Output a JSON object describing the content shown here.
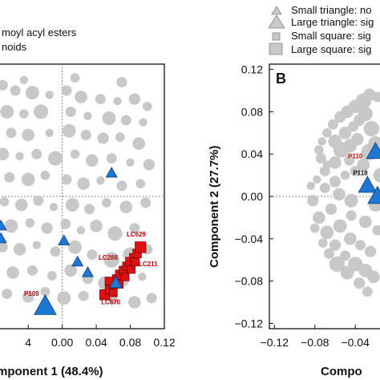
{
  "colors": {
    "background": "#ffffff",
    "points_gray": "#c8c8c8",
    "points_blue": "#1f77d4",
    "points_red": "#dd1111",
    "label_red": "#cc0000",
    "axis": "#111111",
    "zero_line": "#888888"
  },
  "legend_left": {
    "entries": [
      "moyl acyl esters",
      "noids"
    ]
  },
  "legend_right": {
    "entries": [
      "Small triangle: no",
      "Large triangle: sig",
      "Small square: sig",
      "Large square: sig"
    ]
  },
  "chart_data": [
    {
      "type": "scatter",
      "panel_label": "",
      "xlabel": "mponent 1 (48.4%)",
      "ylabel": "",
      "x_ticks": [
        "4",
        "0.00",
        "0.04",
        "0.08",
        "0.12"
      ],
      "x_tick_values": [
        -0.04,
        0.0,
        0.04,
        0.08,
        0.12
      ],
      "xlim": [
        -0.075,
        0.12
      ],
      "ylim": [
        -0.125,
        0.125
      ],
      "grid": false,
      "zero_lines": true,
      "series": [
        {
          "shape": "circle",
          "color": "gray",
          "points": [
            [
              -0.07,
              0.105,
              1.0
            ],
            [
              -0.055,
              0.1,
              1.0
            ],
            [
              -0.035,
              0.098,
              1.3
            ],
            [
              -0.015,
              0.096,
              0.8
            ],
            [
              0.005,
              0.1,
              1.0
            ],
            [
              0.022,
              0.094,
              1.2
            ],
            [
              0.045,
              0.092,
              1.0
            ],
            [
              0.065,
              0.09,
              0.8
            ],
            [
              0.085,
              0.092,
              1.1
            ],
            [
              0.1,
              0.085,
              0.9
            ],
            [
              -0.065,
              0.08,
              1.3
            ],
            [
              -0.045,
              0.078,
              0.9
            ],
            [
              -0.025,
              0.08,
              1.4
            ],
            [
              0.01,
              0.08,
              1.0
            ],
            [
              0.03,
              0.076,
              0.8
            ],
            [
              0.055,
              0.074,
              1.3
            ],
            [
              0.075,
              0.072,
              1.0
            ],
            [
              0.095,
              0.07,
              0.8
            ],
            [
              -0.06,
              0.06,
              1.0
            ],
            [
              -0.04,
              0.058,
              1.2
            ],
            [
              -0.015,
              0.06,
              0.8
            ],
            [
              0.008,
              0.062,
              1.3
            ],
            [
              0.028,
              0.058,
              1.0
            ],
            [
              0.048,
              0.055,
              1.1
            ],
            [
              0.068,
              0.056,
              0.9
            ],
            [
              0.09,
              0.05,
              1.2
            ],
            [
              -0.07,
              0.04,
              1.2
            ],
            [
              -0.05,
              0.038,
              0.8
            ],
            [
              -0.03,
              0.04,
              1.0
            ],
            [
              -0.008,
              0.036,
              1.4
            ],
            [
              0.015,
              0.04,
              0.9
            ],
            [
              0.035,
              0.034,
              1.2
            ],
            [
              0.058,
              0.036,
              1.0
            ],
            [
              0.08,
              0.032,
              0.8
            ],
            [
              0.102,
              0.03,
              1.1
            ],
            [
              -0.062,
              0.018,
              1.0
            ],
            [
              -0.04,
              0.016,
              1.3
            ],
            [
              -0.02,
              0.02,
              0.9
            ],
            [
              0.005,
              0.016,
              1.0
            ],
            [
              0.025,
              0.012,
              1.2
            ],
            [
              0.045,
              0.015,
              0.8
            ],
            [
              0.07,
              0.01,
              1.0
            ],
            [
              0.092,
              0.012,
              0.9
            ],
            [
              -0.068,
              -0.005,
              0.9
            ],
            [
              -0.048,
              -0.008,
              1.2
            ],
            [
              -0.028,
              -0.004,
              1.0
            ],
            [
              -0.01,
              -0.01,
              0.8
            ],
            [
              0.012,
              -0.008,
              1.3
            ],
            [
              0.032,
              -0.012,
              1.0
            ],
            [
              0.052,
              -0.006,
              0.9
            ],
            [
              0.075,
              -0.01,
              1.2
            ],
            [
              0.098,
              -0.006,
              1.0
            ],
            [
              -0.06,
              -0.028,
              1.3
            ],
            [
              -0.038,
              -0.025,
              0.9
            ],
            [
              -0.018,
              -0.03,
              1.1
            ],
            [
              0.004,
              -0.026,
              1.0
            ],
            [
              0.022,
              -0.032,
              0.8
            ],
            [
              0.04,
              -0.028,
              1.2
            ],
            [
              0.062,
              -0.035,
              1.4
            ],
            [
              0.085,
              -0.03,
              1.0
            ],
            [
              -0.07,
              -0.048,
              1.0
            ],
            [
              -0.05,
              -0.05,
              1.2
            ],
            [
              -0.03,
              -0.046,
              0.8
            ],
            [
              -0.008,
              -0.052,
              1.0
            ],
            [
              0.015,
              -0.048,
              1.3
            ],
            [
              0.035,
              -0.055,
              1.0
            ],
            [
              0.058,
              -0.06,
              1.5
            ],
            [
              0.08,
              -0.055,
              1.4
            ],
            [
              0.1,
              -0.05,
              1.0
            ],
            [
              -0.058,
              -0.072,
              1.2
            ],
            [
              -0.035,
              -0.07,
              1.0
            ],
            [
              -0.012,
              -0.075,
              0.9
            ],
            [
              0.01,
              -0.07,
              1.2
            ],
            [
              0.03,
              -0.078,
              1.0
            ],
            [
              0.05,
              -0.082,
              1.3
            ],
            [
              0.072,
              -0.08,
              1.0
            ],
            [
              0.094,
              -0.076,
              0.8
            ],
            [
              -0.065,
              -0.092,
              1.0
            ],
            [
              -0.04,
              -0.095,
              1.1
            ],
            [
              -0.02,
              -0.09,
              0.9
            ],
            [
              0.002,
              -0.096,
              1.3
            ],
            [
              0.025,
              -0.094,
              1.0
            ],
            [
              0.06,
              -0.098,
              0.9
            ],
            [
              0.085,
              -0.1,
              1.2
            ],
            [
              0.105,
              -0.096,
              1.0
            ],
            [
              -0.045,
              0.11,
              0.8
            ],
            [
              0.015,
              0.112,
              0.9
            ],
            [
              0.07,
              0.108,
              1.0
            ]
          ]
        },
        {
          "shape": "triangle",
          "color": "blue",
          "points": [
            [
              0.058,
              0.022,
              0.8
            ],
            [
              -0.072,
              -0.028,
              0.8
            ],
            [
              0.002,
              -0.042,
              0.8
            ],
            [
              -0.072,
              -0.04,
              0.8
            ],
            [
              0.018,
              -0.062,
              0.8
            ],
            [
              0.03,
              -0.072,
              0.8
            ],
            [
              0.063,
              -0.082,
              0.9
            ],
            [
              -0.02,
              -0.104,
              1.6
            ]
          ]
        },
        {
          "shape": "square",
          "color": "red",
          "points": [
            [
              0.05,
              -0.093,
              1.4
            ],
            [
              0.056,
              -0.088,
              1.3
            ],
            [
              0.06,
              -0.083,
              1.2
            ],
            [
              0.064,
              -0.078,
              1.2
            ],
            [
              0.068,
              -0.074,
              1.3
            ],
            [
              0.072,
              -0.07,
              1.2
            ],
            [
              0.076,
              -0.066,
              1.2
            ],
            [
              0.08,
              -0.062,
              1.3
            ],
            [
              0.084,
              -0.058,
              1.2
            ],
            [
              0.088,
              -0.054,
              1.2
            ],
            [
              0.092,
              -0.048,
              1.5
            ],
            [
              0.06,
              -0.091,
              1.1
            ],
            [
              0.067,
              -0.083,
              1.1
            ],
            [
              0.074,
              -0.076,
              1.1
            ],
            [
              0.081,
              -0.069,
              1.1
            ],
            [
              0.086,
              -0.062,
              1.1
            ],
            [
              0.055,
              -0.08,
              1.1
            ]
          ]
        }
      ],
      "labels": [
        {
          "text": "LC629",
          "x": 0.087,
          "y": -0.038,
          "color": "red"
        },
        {
          "text": "LC288",
          "x": 0.054,
          "y": -0.06,
          "color": "red"
        },
        {
          "text": "LC211",
          "x": 0.101,
          "y": -0.066,
          "color": "red"
        },
        {
          "text": "LC870",
          "x": 0.057,
          "y": -0.102,
          "color": "red"
        },
        {
          "text": "P109",
          "x": -0.036,
          "y": -0.094,
          "color": "red"
        }
      ]
    },
    {
      "type": "scatter",
      "panel_label": "B",
      "xlabel": "Compo",
      "ylabel": "Component 2 (27.7%)",
      "x_ticks": [
        "−0.12",
        "−0.08",
        "−0.04"
      ],
      "x_tick_values": [
        -0.12,
        -0.08,
        -0.04
      ],
      "y_ticks": [
        "0.12",
        "0.08",
        "0.04",
        "0.00",
        "−0.04",
        "−0.08",
        "−0.12"
      ],
      "y_tick_values": [
        0.12,
        0.08,
        0.04,
        0.0,
        -0.04,
        -0.08,
        -0.12
      ],
      "xlim": [
        -0.125,
        -0.01
      ],
      "ylim": [
        -0.125,
        0.125
      ],
      "grid": false,
      "zero_lines": true,
      "series": [
        {
          "shape": "circle",
          "color": "gray",
          "points": [
            [
              -0.032,
              0.09,
              1.5
            ],
            [
              -0.04,
              0.085,
              1.3
            ],
            [
              -0.048,
              0.08,
              1.2
            ],
            [
              -0.055,
              0.075,
              1.1
            ],
            [
              -0.062,
              0.068,
              1.0
            ],
            [
              -0.068,
              0.06,
              0.9
            ],
            [
              -0.073,
              0.052,
              0.8
            ],
            [
              -0.076,
              0.044,
              0.9
            ],
            [
              -0.074,
              0.036,
              1.0
            ],
            [
              -0.068,
              0.03,
              0.8
            ],
            [
              -0.06,
              0.052,
              1.3
            ],
            [
              -0.05,
              0.06,
              1.2
            ],
            [
              -0.042,
              0.066,
              1.0
            ],
            [
              -0.036,
              0.072,
              1.1
            ],
            [
              -0.03,
              0.078,
              1.4
            ],
            [
              -0.054,
              0.044,
              1.5
            ],
            [
              -0.045,
              0.048,
              1.3
            ],
            [
              -0.038,
              0.054,
              1.2
            ],
            [
              -0.024,
              0.064,
              1.5
            ],
            [
              -0.02,
              0.05,
              1.4
            ],
            [
              -0.026,
              0.042,
              1.6
            ],
            [
              -0.032,
              0.03,
              1.2
            ],
            [
              -0.04,
              0.024,
              1.0
            ],
            [
              -0.05,
              0.02,
              0.9
            ],
            [
              -0.06,
              0.014,
              1.1
            ],
            [
              -0.07,
              0.008,
              1.0
            ],
            [
              -0.078,
              0.016,
              0.8
            ],
            [
              -0.082,
              -0.004,
              1.1
            ],
            [
              -0.076,
              -0.02,
              1.2
            ],
            [
              -0.068,
              -0.034,
              1.3
            ],
            [
              -0.06,
              -0.046,
              1.1
            ],
            [
              -0.05,
              -0.056,
              1.0
            ],
            [
              -0.04,
              -0.064,
              1.4
            ],
            [
              -0.03,
              -0.07,
              1.3
            ],
            [
              -0.022,
              -0.076,
              1.2
            ],
            [
              -0.058,
              -0.064,
              1.5
            ],
            [
              -0.048,
              -0.072,
              1.3
            ],
            [
              -0.036,
              -0.082,
              1.1
            ],
            [
              -0.066,
              -0.054,
              1.0
            ],
            [
              -0.072,
              -0.044,
              0.9
            ],
            [
              -0.045,
              -0.04,
              1.2
            ],
            [
              -0.035,
              -0.046,
              1.0
            ],
            [
              -0.025,
              -0.052,
              1.1
            ],
            [
              -0.055,
              -0.028,
              1.3
            ],
            [
              -0.044,
              -0.018,
              1.0
            ],
            [
              -0.03,
              -0.024,
              1.2
            ],
            [
              -0.018,
              -0.032,
              1.0
            ],
            [
              -0.056,
              0.002,
              1.2
            ],
            [
              -0.044,
              -0.004,
              1.3
            ],
            [
              -0.064,
              -0.012,
              1.1
            ],
            [
              -0.06,
              0.032,
              1.2
            ],
            [
              -0.07,
              0.024,
              1.0
            ],
            [
              -0.018,
              0.094,
              1.0
            ],
            [
              -0.026,
              0.096,
              1.2
            ],
            [
              -0.015,
              0.02,
              1.4
            ],
            [
              -0.02,
              -0.008,
              1.3
            ],
            [
              -0.046,
              0.034,
              1.0
            ],
            [
              -0.084,
              0.01,
              0.8
            ],
            [
              -0.08,
              -0.03,
              0.9
            ],
            [
              -0.028,
              -0.09,
              1.0
            ]
          ]
        },
        {
          "shape": "triangle",
          "color": "blue",
          "points": [
            [
              -0.02,
              0.042,
              1.3
            ],
            [
              -0.028,
              0.01,
              1.3
            ],
            [
              -0.018,
              0.0,
              1.4
            ]
          ]
        }
      ],
      "labels": [
        {
          "text": "P110",
          "x": -0.04,
          "y": 0.036,
          "color": "red"
        },
        {
          "text": "P118",
          "x": -0.035,
          "y": 0.02,
          "color": "black"
        }
      ]
    }
  ]
}
